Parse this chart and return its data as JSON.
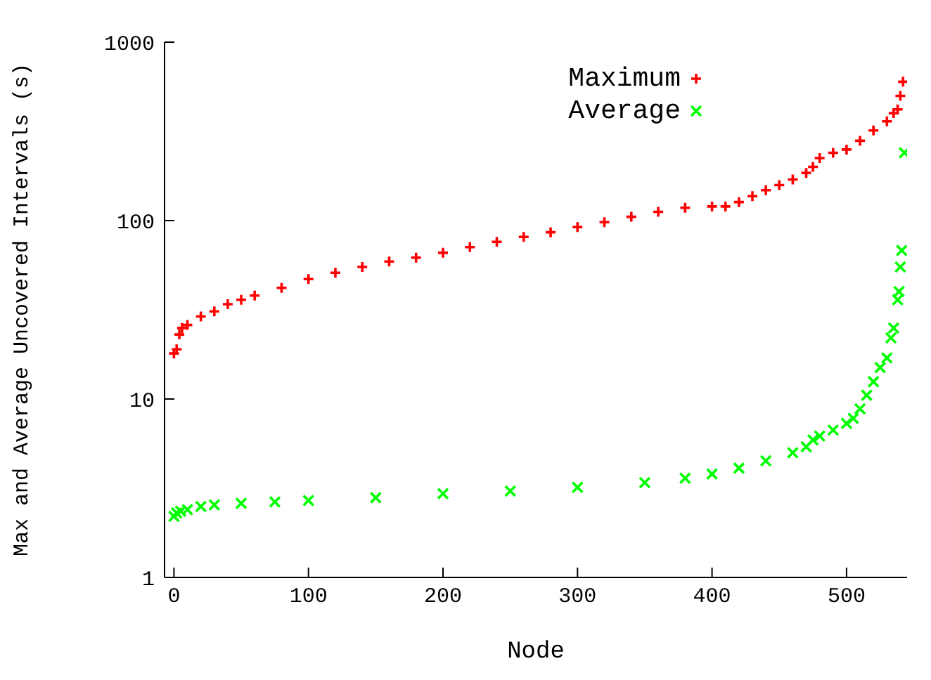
{
  "chart_data": {
    "type": "scatter",
    "xlabel": "Node",
    "ylabel": "Max and Average Uncovered Intervals (s)",
    "log": "y",
    "grid": false,
    "legend": "top right",
    "marker": "cross",
    "xlim": [
      -7,
      545
    ],
    "xticks": [
      0,
      100,
      200,
      300,
      400,
      500
    ],
    "ylim": [
      1,
      1000
    ],
    "yticks": [
      1,
      10,
      100,
      1000
    ],
    "series": [
      {
        "name": "Maximum",
        "color": "#ff0000",
        "x": [
          0,
          2,
          4,
          6,
          10,
          20,
          30,
          40,
          50,
          60,
          80,
          100,
          120,
          140,
          160,
          180,
          200,
          220,
          240,
          260,
          280,
          300,
          320,
          340,
          360,
          380,
          400,
          410,
          420,
          430,
          440,
          450,
          460,
          470,
          475,
          480,
          490,
          500,
          510,
          520,
          530,
          535,
          538,
          540,
          542
        ],
        "values": [
          18,
          19,
          23,
          25,
          26,
          29,
          31,
          34,
          36,
          38,
          42,
          47,
          51,
          55,
          59,
          62,
          66,
          71,
          76,
          81,
          86,
          92,
          98,
          105,
          112,
          118,
          120,
          120,
          127,
          137,
          148,
          158,
          170,
          185,
          200,
          224,
          240,
          250,
          280,
          320,
          360,
          400,
          420,
          500,
          600
        ]
      },
      {
        "name": "Average",
        "color": "#00ff00",
        "x": [
          0,
          2,
          5,
          10,
          20,
          30,
          50,
          75,
          100,
          150,
          200,
          250,
          300,
          350,
          380,
          400,
          420,
          440,
          460,
          470,
          475,
          480,
          490,
          500,
          505,
          510,
          515,
          520,
          525,
          530,
          533,
          535,
          538,
          539,
          540,
          541,
          543
        ],
        "values": [
          2.2,
          2.3,
          2.35,
          2.4,
          2.5,
          2.55,
          2.6,
          2.65,
          2.7,
          2.8,
          2.95,
          3.05,
          3.2,
          3.4,
          3.6,
          3.8,
          4.1,
          4.5,
          5.0,
          5.4,
          5.9,
          6.2,
          6.7,
          7.3,
          7.8,
          8.8,
          10.5,
          12.5,
          15,
          17,
          22,
          25,
          36,
          40,
          55,
          68,
          240
        ]
      }
    ]
  }
}
